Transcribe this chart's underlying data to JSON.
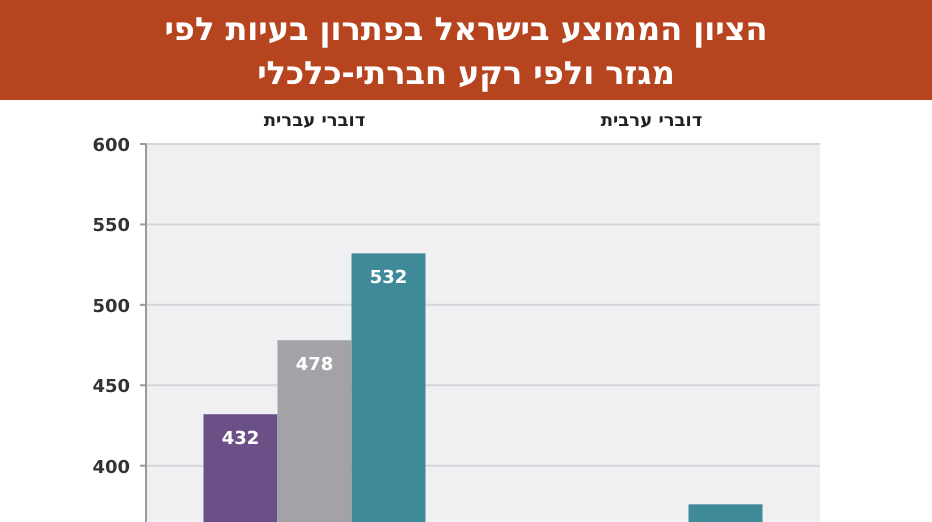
{
  "chart_data": {
    "type": "bar",
    "title": "הציון הממוצע בישראל בפתרון בעיות לפי\nמגזר ולפי רקע חברתי-כלכלי",
    "categories": [
      "דוברי עברית",
      "דוברי ערבית"
    ],
    "series": [
      {
        "color": "#6b5088",
        "values": [
          432,
          null
        ],
        "value_labels": [
          "432",
          null
        ]
      },
      {
        "color": "#a3a2a6",
        "values": [
          478,
          null
        ],
        "value_labels": [
          "478",
          null
        ]
      },
      {
        "color": "#3f8a99",
        "values": [
          532,
          376
        ],
        "value_labels": [
          "532",
          null
        ]
      }
    ],
    "ylim": [
      365,
      600
    ],
    "yticks": [
      400,
      450,
      500,
      550,
      600
    ],
    "grid": "y"
  }
}
